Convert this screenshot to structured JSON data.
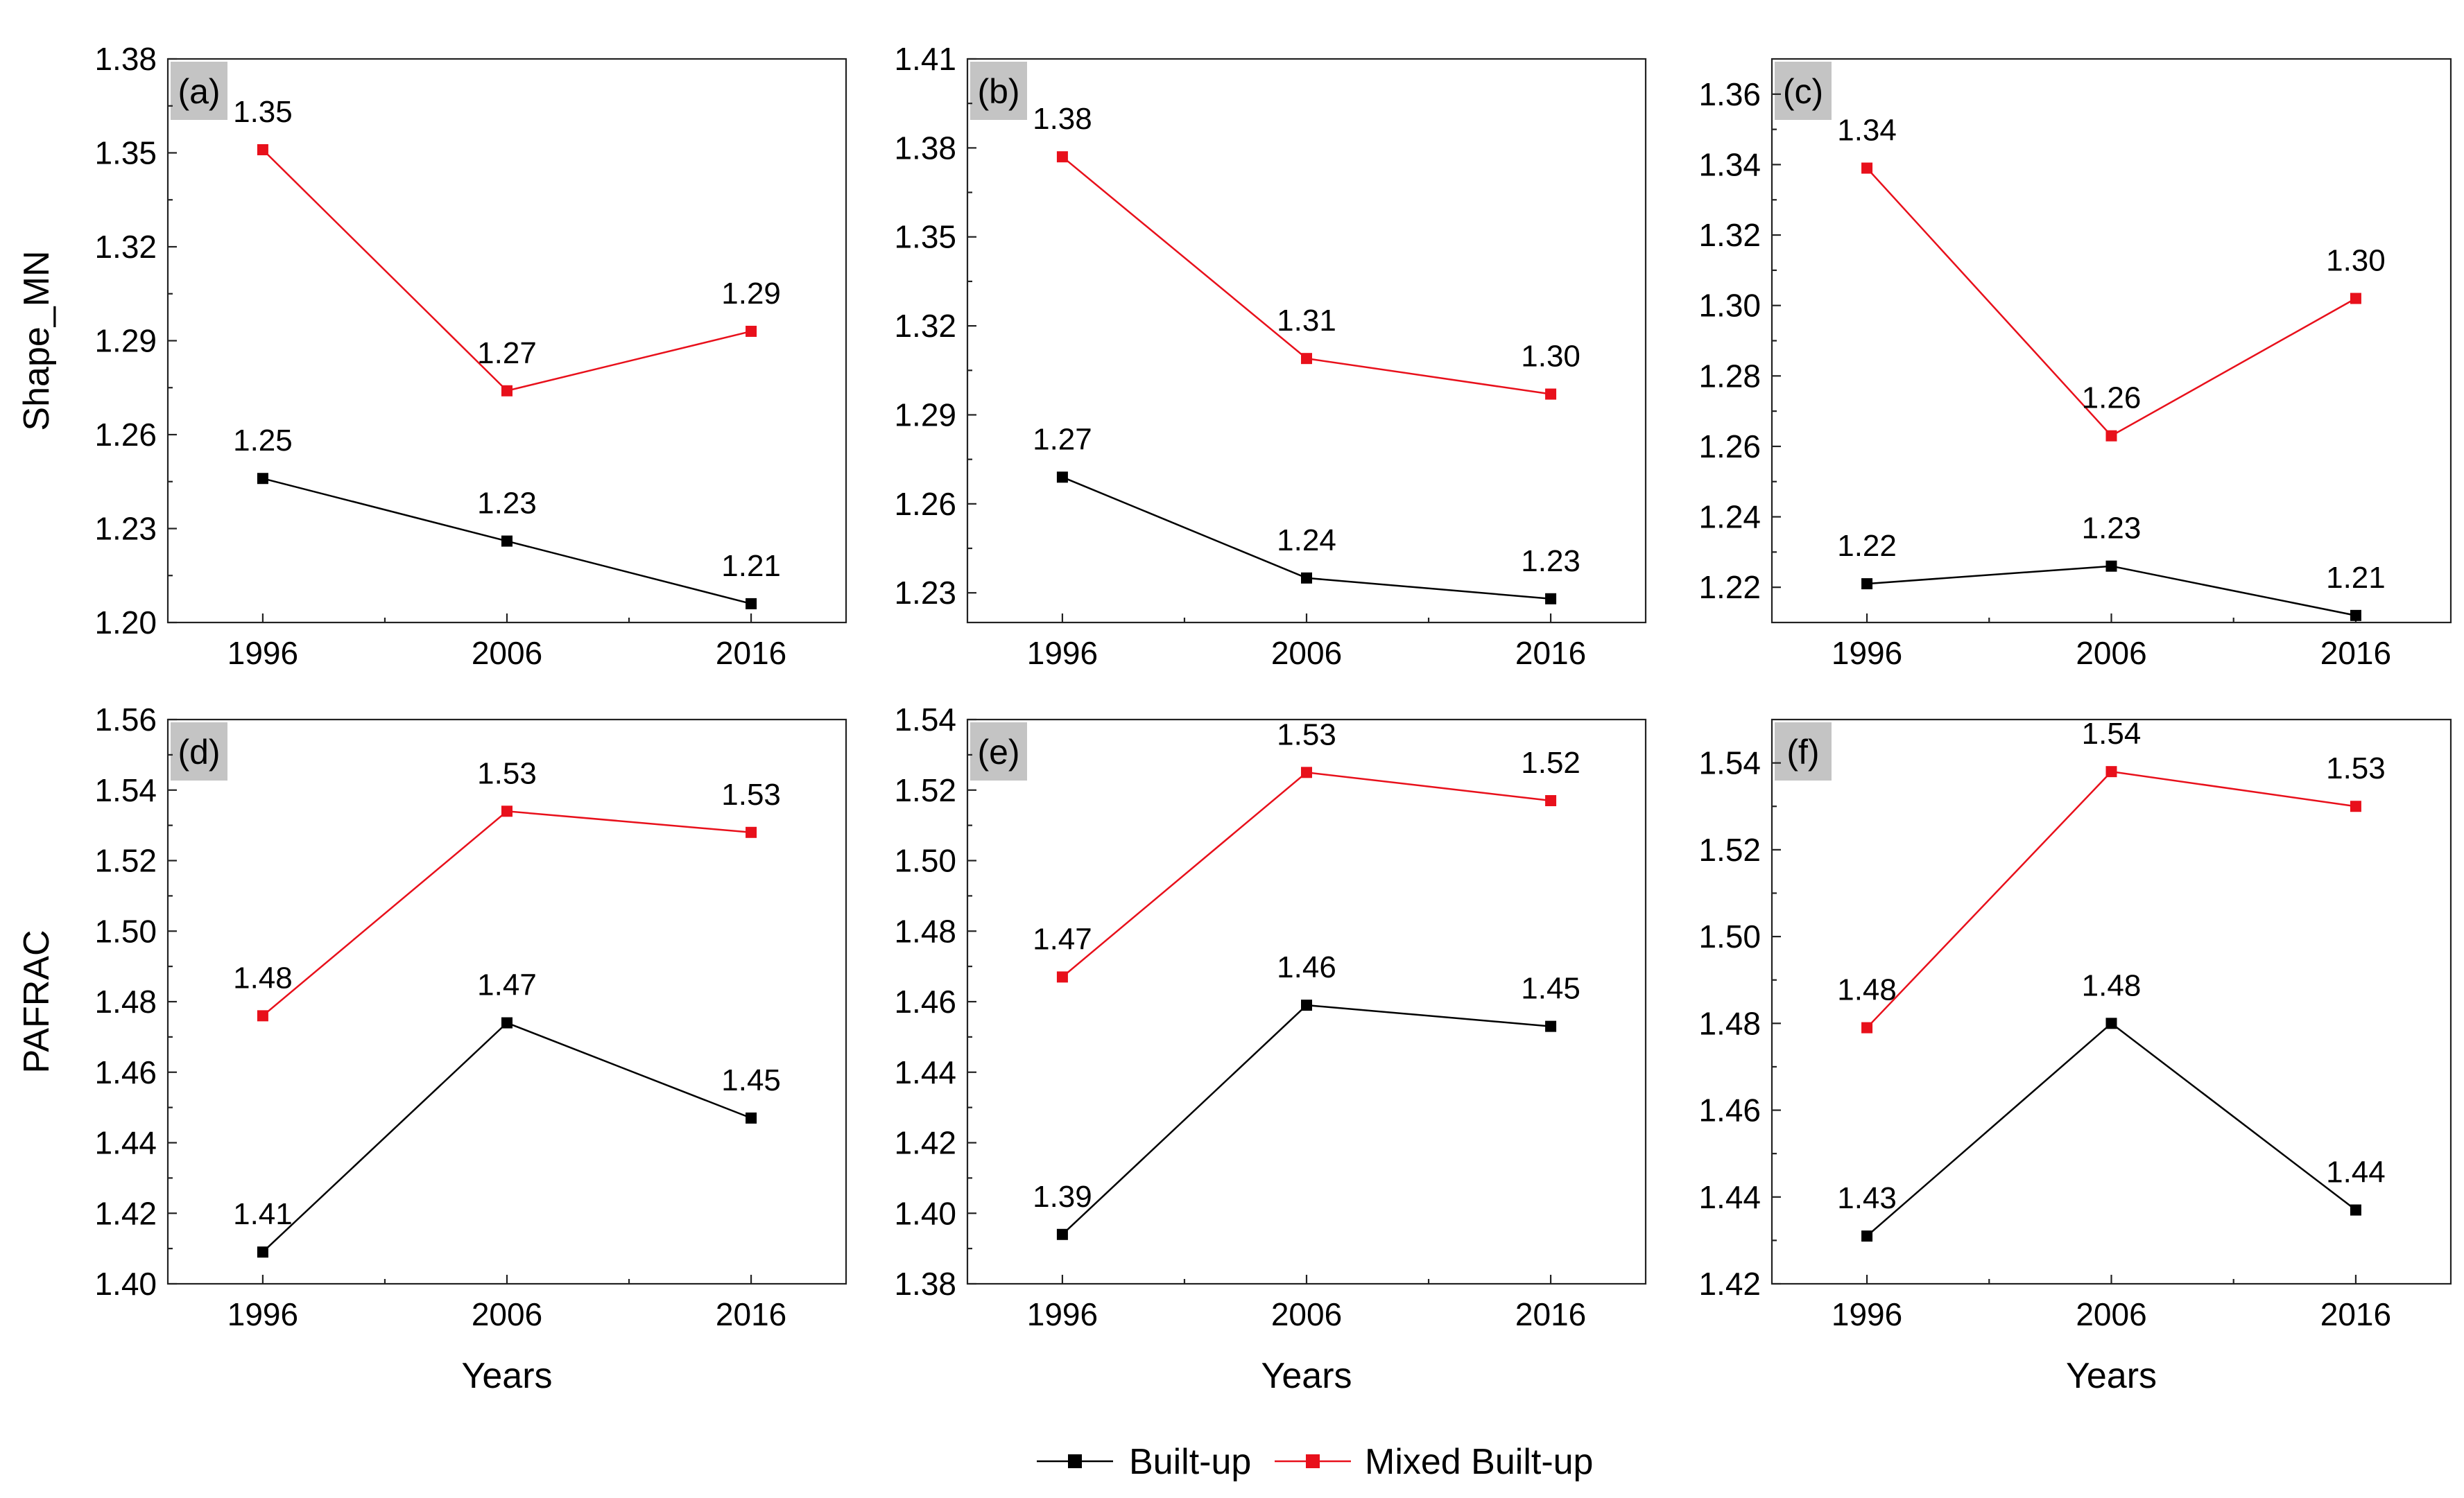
{
  "legend": {
    "builtup": "Built-up",
    "mixed": "Mixed Built-up"
  },
  "colors": {
    "builtup": "#000000",
    "mixed": "#e8101b",
    "tag_bg": "#c4c4c4"
  },
  "chart_data": [
    {
      "type": "line",
      "panel": "(a)",
      "ylabel": "Shape_MN",
      "xlabel": "",
      "categories": [
        "1996",
        "2006",
        "2016"
      ],
      "ylim": [
        1.2,
        1.38
      ],
      "yticks": [
        "1.20",
        "1.23",
        "1.26",
        "1.29",
        "1.32",
        "1.35",
        "1.38"
      ],
      "series": [
        {
          "name": "Built-up",
          "values": [
            1.246,
            1.226,
            1.206
          ],
          "labels": [
            "1.25",
            "1.23",
            "1.21"
          ]
        },
        {
          "name": "Mixed Built-up",
          "values": [
            1.351,
            1.274,
            1.293
          ],
          "labels": [
            "1.35",
            "1.27",
            "1.29"
          ]
        }
      ]
    },
    {
      "type": "line",
      "panel": "(b)",
      "ylabel": "",
      "xlabel": "",
      "categories": [
        "1996",
        "2006",
        "2016"
      ],
      "ylim": [
        1.22,
        1.41
      ],
      "yticks": [
        "1.23",
        "1.26",
        "1.29",
        "1.32",
        "1.35",
        "1.38",
        "1.41"
      ],
      "series": [
        {
          "name": "Built-up",
          "values": [
            1.269,
            1.235,
            1.228
          ],
          "labels": [
            "1.27",
            "1.24",
            "1.23"
          ]
        },
        {
          "name": "Mixed Built-up",
          "values": [
            1.377,
            1.309,
            1.297
          ],
          "labels": [
            "1.38",
            "1.31",
            "1.30"
          ]
        }
      ]
    },
    {
      "type": "line",
      "panel": "(c)",
      "ylabel": "",
      "xlabel": "",
      "categories": [
        "1996",
        "2006",
        "2016"
      ],
      "ylim": [
        1.21,
        1.37
      ],
      "yticks": [
        "1.22",
        "1.24",
        "1.26",
        "1.28",
        "1.30",
        "1.32",
        "1.34",
        "1.36"
      ],
      "series": [
        {
          "name": "Built-up",
          "values": [
            1.221,
            1.226,
            1.212
          ],
          "labels": [
            "1.22",
            "1.23",
            "1.21"
          ]
        },
        {
          "name": "Mixed Built-up",
          "values": [
            1.339,
            1.263,
            1.302
          ],
          "labels": [
            "1.34",
            "1.26",
            "1.30"
          ]
        }
      ]
    },
    {
      "type": "line",
      "panel": "(d)",
      "ylabel": "PAFRAC",
      "xlabel": "Years",
      "categories": [
        "1996",
        "2006",
        "2016"
      ],
      "ylim": [
        1.4,
        1.56
      ],
      "yticks": [
        "1.40",
        "1.42",
        "1.44",
        "1.46",
        "1.48",
        "1.50",
        "1.52",
        "1.54",
        "1.56"
      ],
      "series": [
        {
          "name": "Built-up",
          "values": [
            1.409,
            1.474,
            1.447
          ],
          "labels": [
            "1.41",
            "1.47",
            "1.45"
          ]
        },
        {
          "name": "Mixed Built-up",
          "values": [
            1.476,
            1.534,
            1.528
          ],
          "labels": [
            "1.48",
            "1.53",
            "1.53"
          ]
        }
      ]
    },
    {
      "type": "line",
      "panel": "(e)",
      "ylabel": "",
      "xlabel": "Years",
      "categories": [
        "1996",
        "2006",
        "2016"
      ],
      "ylim": [
        1.38,
        1.54
      ],
      "yticks": [
        "1.38",
        "1.40",
        "1.42",
        "1.44",
        "1.46",
        "1.48",
        "1.50",
        "1.52",
        "1.54"
      ],
      "series": [
        {
          "name": "Built-up",
          "values": [
            1.394,
            1.459,
            1.453
          ],
          "labels": [
            "1.39",
            "1.46",
            "1.45"
          ]
        },
        {
          "name": "Mixed Built-up",
          "values": [
            1.467,
            1.525,
            1.517
          ],
          "labels": [
            "1.47",
            "1.53",
            "1.52"
          ]
        }
      ]
    },
    {
      "type": "line",
      "panel": "(f)",
      "ylabel": "",
      "xlabel": "Years",
      "categories": [
        "1996",
        "2006",
        "2016"
      ],
      "ylim": [
        1.42,
        1.55
      ],
      "yticks": [
        "1.42",
        "1.44",
        "1.46",
        "1.48",
        "1.50",
        "1.52",
        "1.54"
      ],
      "series": [
        {
          "name": "Built-up",
          "values": [
            1.431,
            1.48,
            1.437
          ],
          "labels": [
            "1.43",
            "1.48",
            "1.44"
          ]
        },
        {
          "name": "Mixed Built-up",
          "values": [
            1.479,
            1.538,
            1.53
          ],
          "labels": [
            "1.48",
            "1.54",
            "1.53"
          ]
        }
      ]
    }
  ]
}
